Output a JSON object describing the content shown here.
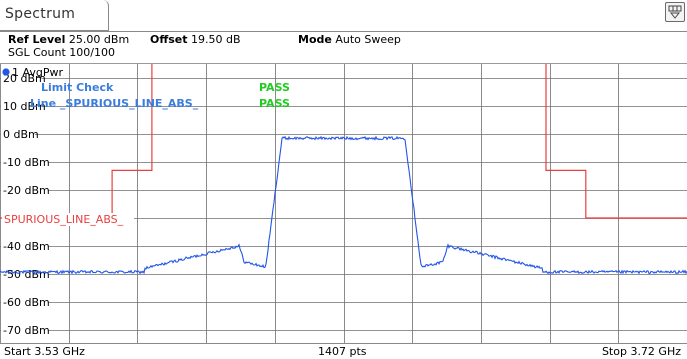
{
  "tab": {
    "title": "Spectrum"
  },
  "header": {
    "ref_level_label": "Ref Level",
    "ref_level_value": "25.00 dBm",
    "offset_label": "Offset",
    "offset_value": "19.50 dB",
    "mode_label": "Mode",
    "mode_value": "Auto Sweep",
    "sgl_count": "SGL Count 100/100"
  },
  "trace": {
    "label": "1 AvgPwr",
    "color": "#2255e8"
  },
  "limit_check": {
    "title": "Limit Check",
    "title_result": "PASS",
    "line_label": "Line _SPURIOUS_LINE_ABS_",
    "line_result": "PASS",
    "pass_color": "#22cc22",
    "text_color": "#3a7ddc"
  },
  "limit_line": {
    "label": "SPURIOUS_LINE_ABS_",
    "color": "#e84040"
  },
  "y_axis": {
    "labels": [
      "20 dBm",
      "10 dBm",
      "0 dBm",
      "-10 dBm",
      "-20 dBm",
      "-30 dBm",
      "-40 dBm",
      "-50 dBm",
      "-60 dBm",
      "-70 dBm"
    ],
    "max": 25,
    "min": -75
  },
  "footer": {
    "start": "Start 3.53 GHz",
    "points": "1407 pts",
    "stop": "Stop 3.72 GHz"
  }
}
